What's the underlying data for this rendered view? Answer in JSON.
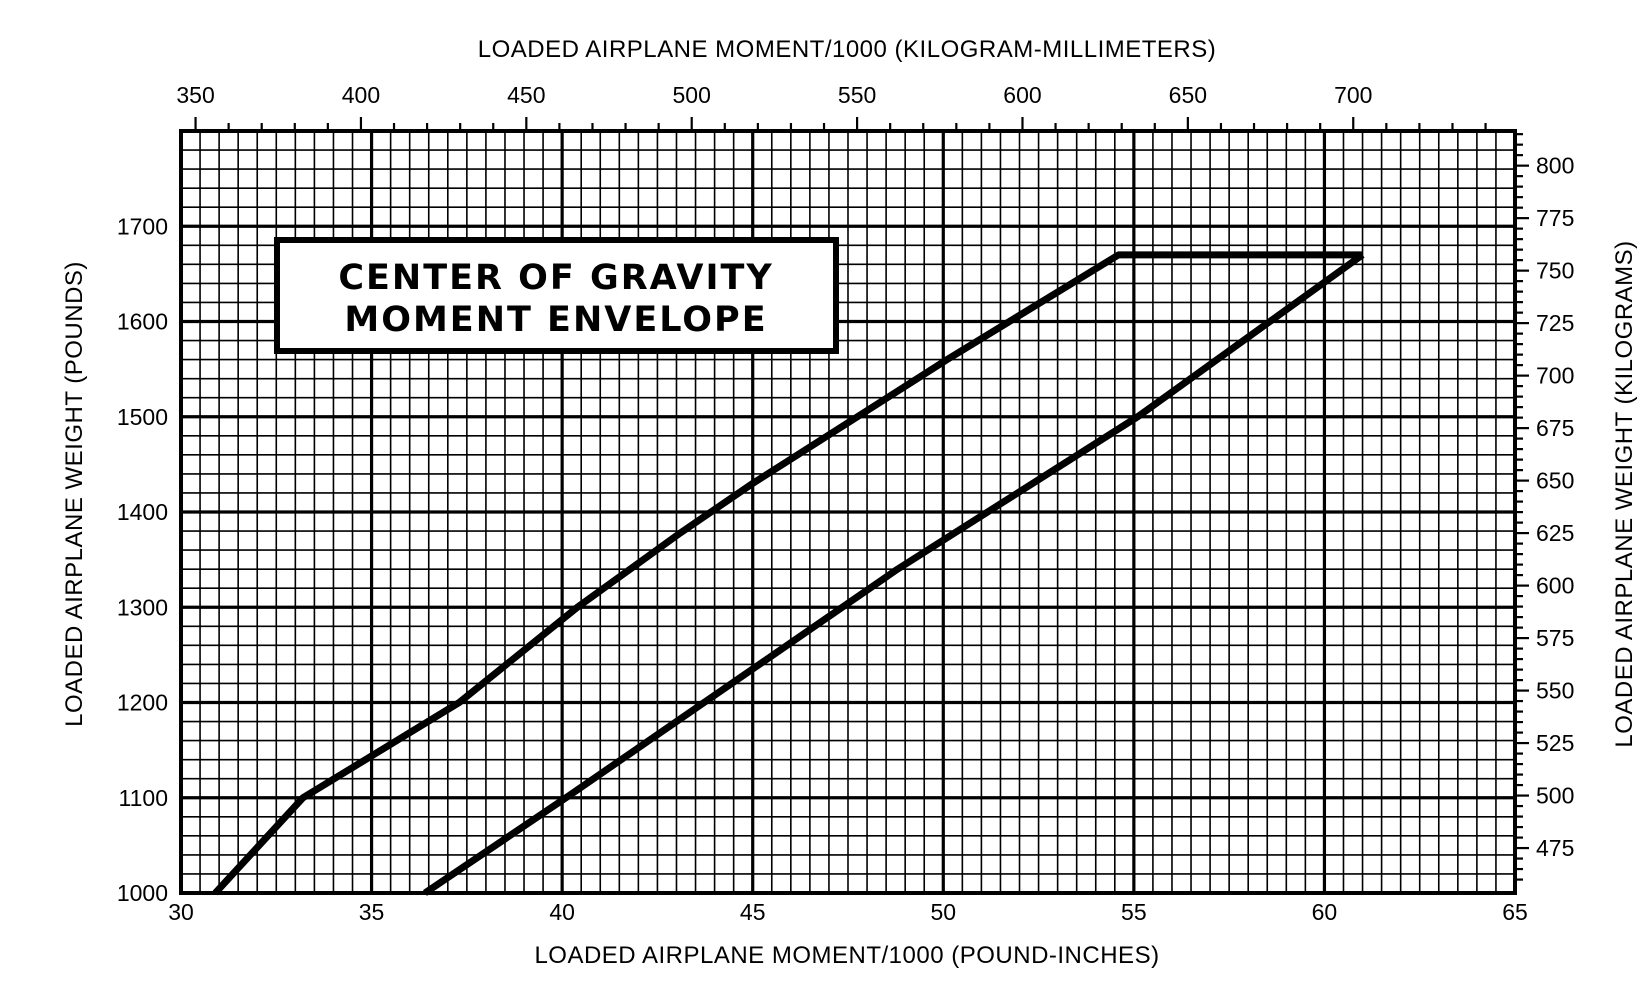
{
  "chart_data": {
    "type": "line",
    "title": [
      "CENTER OF GRAVITY",
      "MOMENT ENVELOPE"
    ],
    "xlabel": "LOADED AIRPLANE MOMENT/1000 (POUND-INCHES)",
    "ylabel": "LOADED AIRPLANE WEIGHT (POUNDS)",
    "x2label": "LOADED AIRPLANE MOMENT/1000 (KILOGRAM-MILLIMETERS)",
    "y2label": "LOADED AIRPLANE WEIGHT (KILOGRAMS)",
    "xlim": [
      30,
      65
    ],
    "ylim": [
      1000,
      1800
    ],
    "x2lim": [
      345.6,
      748.9
    ],
    "y2lim": [
      453.6,
      816.5
    ],
    "x_ticks": [
      30,
      35,
      40,
      45,
      50,
      55,
      60,
      65
    ],
    "y_ticks": [
      1000,
      1100,
      1200,
      1300,
      1400,
      1500,
      1600,
      1700
    ],
    "x2_ticks": [
      350,
      400,
      450,
      500,
      550,
      600,
      650,
      700
    ],
    "y2_ticks": [
      475,
      500,
      525,
      550,
      575,
      600,
      625,
      650,
      675,
      700,
      725,
      750,
      775,
      800
    ],
    "grid": true,
    "series": [
      {
        "x": [
          30.9,
          33.2,
          37.3,
          40.4,
          43.1,
          45.0,
          50.1,
          54.6,
          61.0
        ],
        "y": [
          1000,
          1100,
          1200,
          1300,
          1378,
          1430,
          1560,
          1670,
          1670
        ]
      },
      {
        "x": [
          61.0,
          55.1,
          48.8,
          40.1,
          36.4
        ],
        "y": [
          1670,
          1500,
          1340,
          1100,
          1000
        ]
      }
    ]
  },
  "colors": {
    "ink": "#000000",
    "paper": "#ffffff"
  }
}
